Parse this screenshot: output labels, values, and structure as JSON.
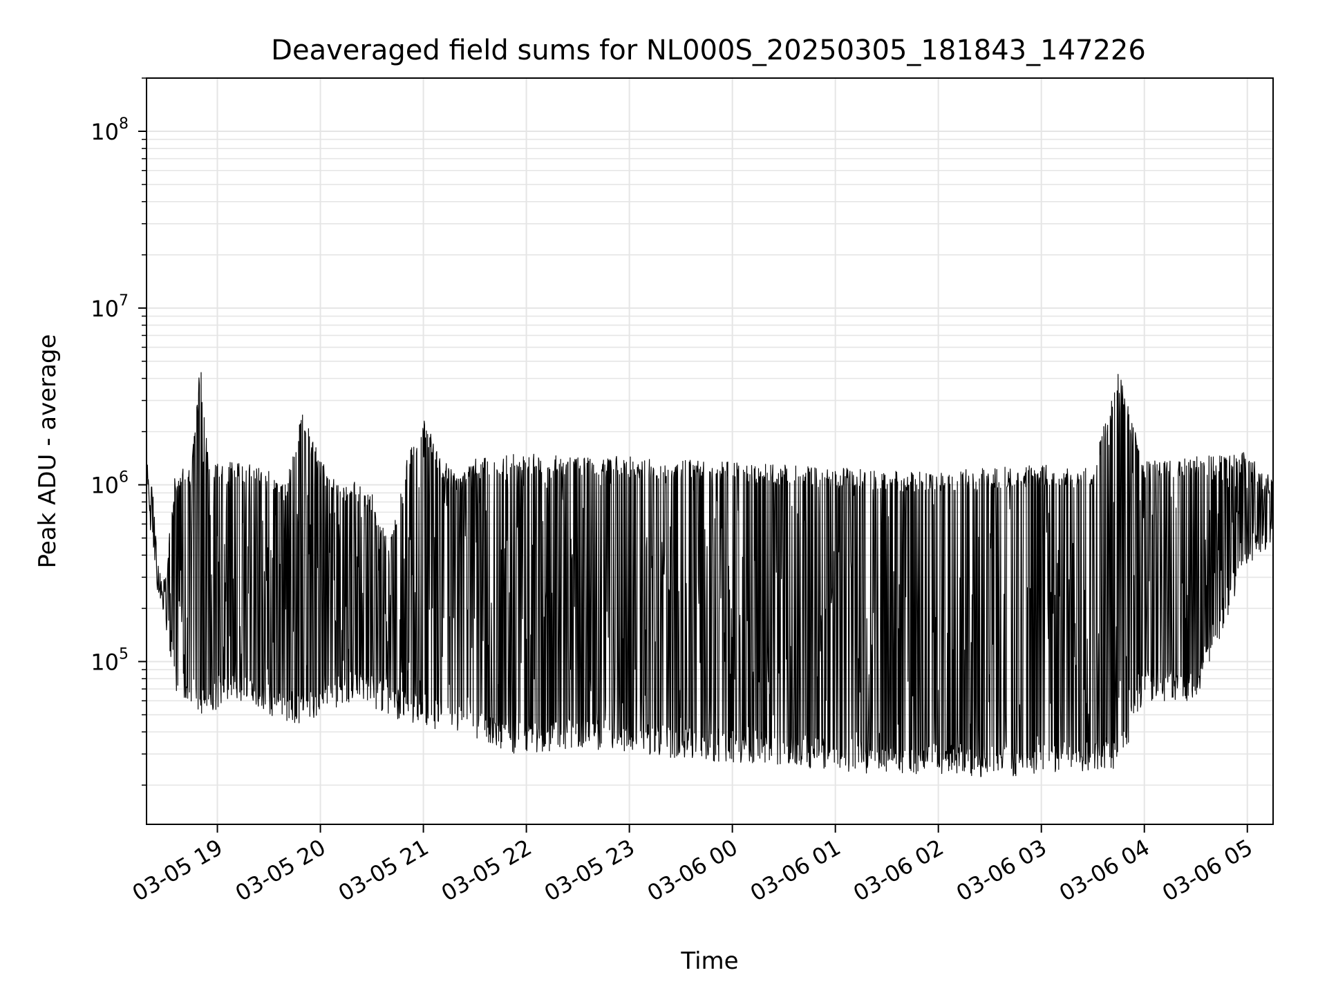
{
  "chart_data": {
    "type": "line",
    "title": "Deaveraged field sums for NL000S_20250305_181843_147226",
    "xlabel": "Time",
    "ylabel": "Peak ADU - average",
    "x_scale": "time",
    "y_scale": "log",
    "xlim": [
      "2025-03-05 18:18:43",
      "2025-03-06 05:15:00"
    ],
    "ylim": [
      12000,
      200000000
    ],
    "x_ticks": [
      "03-05 19",
      "03-05 20",
      "03-05 21",
      "03-05 22",
      "03-05 23",
      "03-06 00",
      "03-06 01",
      "03-06 02",
      "03-06 03",
      "03-06 04",
      "03-06 05"
    ],
    "y_ticks": [
      {
        "base": "10",
        "exp": "5",
        "value": 100000
      },
      {
        "base": "10",
        "exp": "6",
        "value": 1000000
      },
      {
        "base": "10",
        "exp": "7",
        "value": 10000000
      },
      {
        "base": "10",
        "exp": "8",
        "value": 100000000
      }
    ],
    "grid": true,
    "line_color": "#000000",
    "grid_color": "#e5e5e5",
    "series": [
      {
        "x": [
          "2025-03-05 18:19",
          "2025-03-05 18:22",
          "2025-03-05 18:25",
          "2025-03-05 18:30",
          "2025-03-05 18:35",
          "2025-03-05 18:40",
          "2025-03-05 18:45",
          "2025-03-05 18:50",
          "2025-03-05 18:55",
          "2025-03-05 19:00",
          "2025-03-05 19:10",
          "2025-03-05 19:20",
          "2025-03-05 19:30",
          "2025-03-05 19:40",
          "2025-03-05 19:50",
          "2025-03-05 20:00",
          "2025-03-05 20:10",
          "2025-03-05 20:20",
          "2025-03-05 20:30",
          "2025-03-05 20:40",
          "2025-03-05 20:50",
          "2025-03-05 21:00",
          "2025-03-05 21:10",
          "2025-03-05 21:20",
          "2025-03-05 21:30",
          "2025-03-05 21:40",
          "2025-03-05 21:50",
          "2025-03-05 22:00",
          "2025-03-05 22:30",
          "2025-03-05 23:00",
          "2025-03-05 23:30",
          "2025-03-06 00:00",
          "2025-03-06 00:30",
          "2025-03-06 01:00",
          "2025-03-06 01:30",
          "2025-03-06 02:00",
          "2025-03-06 02:30",
          "2025-03-06 03:00",
          "2025-03-06 03:30",
          "2025-03-06 03:45",
          "2025-03-06 04:00",
          "2025-03-06 04:30",
          "2025-03-06 05:00",
          "2025-03-06 05:15"
        ],
        "upper": [
          1400000,
          1100000,
          400000,
          300000,
          1150000,
          1250000,
          1300000,
          5000000,
          1300000,
          1350000,
          1350000,
          1300000,
          1200000,
          1000000,
          2800000,
          1400000,
          1000000,
          1050000,
          900000,
          480000,
          1400000,
          2500000,
          1450000,
          1100000,
          1400000,
          1450000,
          1500000,
          1500000,
          1450000,
          1450000,
          1400000,
          1350000,
          1300000,
          1250000,
          1200000,
          1200000,
          1250000,
          1300000,
          1250000,
          4500000,
          1350000,
          1450000,
          1550000,
          1100000
        ],
        "lower": [
          800000,
          450000,
          250000,
          150000,
          70000,
          60000,
          55000,
          50000,
          45000,
          55000,
          60000,
          55000,
          50000,
          45000,
          45000,
          50000,
          55000,
          60000,
          55000,
          50000,
          45000,
          45000,
          40000,
          38000,
          35000,
          32000,
          30000,
          30000,
          32000,
          30000,
          28000,
          27000,
          26000,
          24000,
          23000,
          23000,
          22000,
          23000,
          24000,
          25000,
          60000,
          60000,
          350000,
          450000
        ]
      }
    ]
  }
}
